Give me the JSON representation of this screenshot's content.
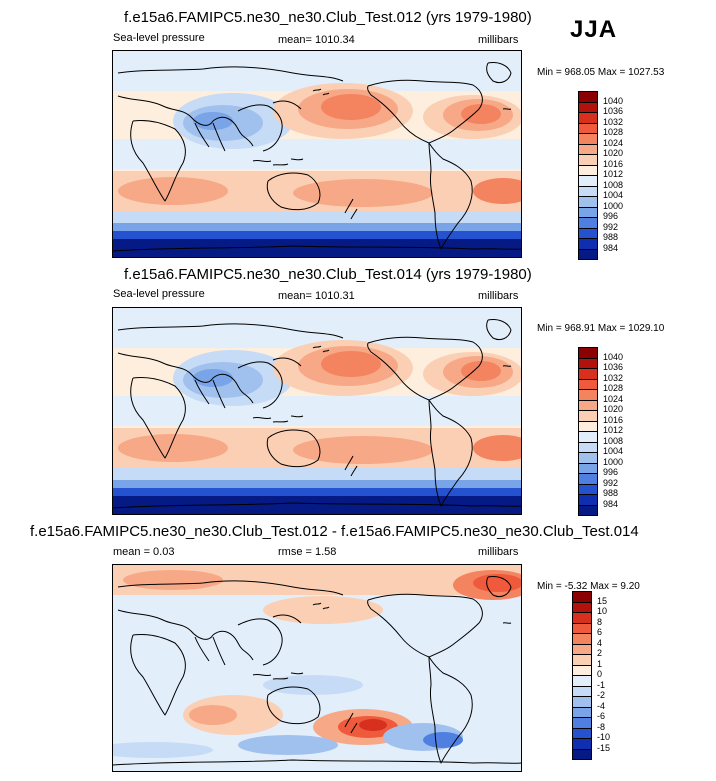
{
  "season": "JJA",
  "panels": [
    {
      "title": "f.e15a6.FAMIPC5.ne30_ne30.Club_Test.012 (yrs 1979-1980)",
      "left_label": "Sea-level pressure",
      "center_label": "mean= 1010.34",
      "right_label": "millibars",
      "minmax": "Min = 968.05 Max = 1027.53",
      "colorbar_labels": [
        "1040",
        "1036",
        "1032",
        "1028",
        "1024",
        "1020",
        "1016",
        "1012",
        "1008",
        "1004",
        "1000",
        "996",
        "992",
        "988",
        "984"
      ],
      "colorbar_colors": [
        "#8b0000",
        "#b2120e",
        "#d7301f",
        "#ef5a3c",
        "#f4835f",
        "#f7a886",
        "#fbcfb4",
        "#fdeedd",
        "#e3eefb",
        "#c6dbf5",
        "#a0c1ee",
        "#7aa4e8",
        "#4f7fe0",
        "#2552cf",
        "#0f2fb0",
        "#061a85"
      ]
    },
    {
      "title": "f.e15a6.FAMIPC5.ne30_ne30.Club_Test.014 (yrs 1979-1980)",
      "left_label": "Sea-level pressure",
      "center_label": "mean= 1010.31",
      "right_label": "millibars",
      "minmax": "Min = 968.91 Max = 1029.10",
      "colorbar_labels": [
        "1040",
        "1036",
        "1032",
        "1028",
        "1024",
        "1020",
        "1016",
        "1012",
        "1008",
        "1004",
        "1000",
        "996",
        "992",
        "988",
        "984"
      ],
      "colorbar_colors": [
        "#8b0000",
        "#b2120e",
        "#d7301f",
        "#ef5a3c",
        "#f4835f",
        "#f7a886",
        "#fbcfb4",
        "#fdeedd",
        "#e3eefb",
        "#c6dbf5",
        "#a0c1ee",
        "#7aa4e8",
        "#4f7fe0",
        "#2552cf",
        "#0f2fb0",
        "#061a85"
      ]
    },
    {
      "title": "f.e15a6.FAMIPC5.ne30_ne30.Club_Test.012 - f.e15a6.FAMIPC5.ne30_ne30.Club_Test.014",
      "left_label": "mean =   0.03",
      "center_label": "rmse =   1.58",
      "right_label": "millibars",
      "minmax": "Min =  -5.32 Max =   9.20",
      "colorbar_labels": [
        "15",
        "10",
        "8",
        "6",
        "4",
        "2",
        "1",
        "0",
        "-1",
        "-2",
        "-4",
        "-6",
        "-8",
        "-10",
        "-15"
      ],
      "colorbar_colors": [
        "#8b0000",
        "#b2120e",
        "#d7301f",
        "#ef5a3c",
        "#f4835f",
        "#f7a886",
        "#fbcfb4",
        "#fdeedd",
        "#e3eefb",
        "#c6dbf5",
        "#a0c1ee",
        "#7aa4e8",
        "#4f7fe0",
        "#2552cf",
        "#0f2fb0",
        "#061a85"
      ]
    }
  ],
  "chart_data": [
    {
      "type": "heatmap",
      "title": "f.e15a6.FAMIPC5.ne30_ne30.Club_Test.012 (yrs 1979-1980)",
      "variable": "Sea-level pressure",
      "units": "millibars",
      "mean": 1010.34,
      "min": 968.05,
      "max": 1027.53,
      "contour_levels": [
        984,
        988,
        992,
        996,
        1000,
        1004,
        1008,
        1012,
        1016,
        1020,
        1024,
        1028,
        1032,
        1036,
        1040
      ]
    },
    {
      "type": "heatmap",
      "title": "f.e15a6.FAMIPC5.ne30_ne30.Club_Test.014 (yrs 1979-1980)",
      "variable": "Sea-level pressure",
      "units": "millibars",
      "mean": 1010.31,
      "min": 968.91,
      "max": 1029.1,
      "contour_levels": [
        984,
        988,
        992,
        996,
        1000,
        1004,
        1008,
        1012,
        1016,
        1020,
        1024,
        1028,
        1032,
        1036,
        1040
      ]
    },
    {
      "type": "heatmap",
      "title": "f.e15a6.FAMIPC5.ne30_ne30.Club_Test.012 - f.e15a6.FAMIPC5.ne30_ne30.Club_Test.014",
      "units": "millibars",
      "mean": 0.03,
      "rmse": 1.58,
      "min": -5.32,
      "max": 9.2,
      "contour_levels": [
        -15,
        -10,
        -8,
        -6,
        -4,
        -2,
        -1,
        0,
        1,
        2,
        4,
        6,
        8,
        10,
        15
      ]
    }
  ]
}
